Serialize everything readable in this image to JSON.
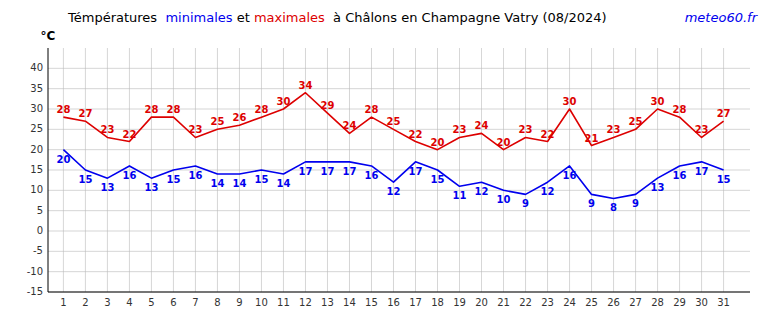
{
  "chart_data": {
    "type": "line",
    "title_parts": [
      {
        "text": "Témpératures  ",
        "color": "black"
      },
      {
        "text": "minimales",
        "color": "#0000ee"
      },
      {
        "text": " et ",
        "color": "black"
      },
      {
        "text": "maximales",
        "color": "#dd0000"
      },
      {
        "text": "  à Châlons en Champagne Vatry (08/2024)",
        "color": "black"
      }
    ],
    "annotations": [
      {
        "text": "meteo60.fr",
        "color": "#0000ee"
      }
    ],
    "ylabel": "°C",
    "x": [
      1,
      2,
      3,
      4,
      5,
      6,
      7,
      8,
      9,
      10,
      11,
      12,
      13,
      14,
      15,
      16,
      17,
      18,
      19,
      20,
      21,
      22,
      23,
      24,
      25,
      26,
      27,
      28,
      29,
      30,
      31
    ],
    "series": [
      {
        "color": "#0000ee",
        "values": [
          20,
          15,
          13,
          16,
          13,
          15,
          16,
          14,
          14,
          15,
          14,
          17,
          17,
          17,
          16,
          12,
          17,
          15,
          11,
          12,
          10,
          9,
          12,
          16,
          9,
          8,
          9,
          13,
          16,
          17,
          15
        ]
      },
      {
        "color": "#dd0000",
        "values": [
          28,
          27,
          23,
          22,
          28,
          28,
          23,
          25,
          26,
          28,
          30,
          34,
          29,
          24,
          28,
          25,
          22,
          20,
          23,
          24,
          20,
          23,
          22,
          30,
          21,
          23,
          25,
          30,
          28,
          23,
          27
        ]
      }
    ],
    "xlim": [
      0.3,
      32.2
    ],
    "xticks": [
      1,
      2,
      3,
      4,
      5,
      6,
      7,
      8,
      9,
      10,
      11,
      12,
      13,
      14,
      15,
      16,
      17,
      18,
      19,
      20,
      21,
      22,
      23,
      24,
      25,
      26,
      27,
      28,
      29,
      30,
      31
    ],
    "ylim": [
      -15,
      45
    ],
    "yticks": [
      -15,
      -10,
      -5,
      0,
      5,
      10,
      15,
      20,
      25,
      30,
      35,
      40
    ],
    "grid": true,
    "data_labels": true
  }
}
